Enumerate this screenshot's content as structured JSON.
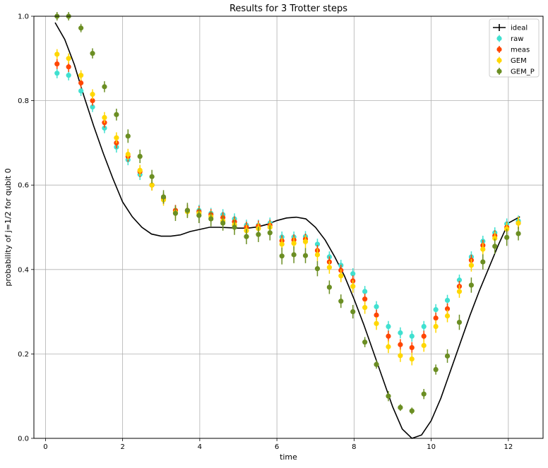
{
  "chart_data": {
    "type": "scatter",
    "title": "Results for 3 Trotter steps",
    "xlabel": "time",
    "ylabel": "probability of j=1/2 for qubit 0",
    "xlim": [
      -0.3,
      12.9
    ],
    "ylim": [
      0.0,
      1.0
    ],
    "xticks": [
      0,
      2,
      4,
      6,
      8,
      10,
      12
    ],
    "yticks": [
      0.0,
      0.2,
      0.4,
      0.6,
      0.8,
      1.0
    ],
    "grid": true,
    "legend_position": "top-right",
    "colors": {
      "ideal": "#000000",
      "raw": "#40e0d0",
      "meas": "#ff4500",
      "GEM": "#ffd700",
      "GEM_P": "#6b8e23"
    },
    "ideal": {
      "name": "ideal",
      "x": [
        0.25,
        0.5,
        0.75,
        1.0,
        1.25,
        1.5,
        1.75,
        2.0,
        2.25,
        2.5,
        2.75,
        3.0,
        3.25,
        3.5,
        3.75,
        4.0,
        4.25,
        4.5,
        4.75,
        5.0,
        5.25,
        5.5,
        5.75,
        6.0,
        6.25,
        6.5,
        6.75,
        7.0,
        7.25,
        7.5,
        7.75,
        8.0,
        8.25,
        8.5,
        8.75,
        9.0,
        9.25,
        9.5,
        9.75,
        10.0,
        10.25,
        10.5,
        10.75,
        11.0,
        11.25,
        11.5,
        11.75,
        12.0,
        12.3
      ],
      "y": [
        0.985,
        0.945,
        0.885,
        0.81,
        0.74,
        0.675,
        0.615,
        0.56,
        0.525,
        0.5,
        0.484,
        0.479,
        0.479,
        0.482,
        0.49,
        0.495,
        0.5,
        0.5,
        0.499,
        0.498,
        0.498,
        0.501,
        0.507,
        0.516,
        0.522,
        0.524,
        0.52,
        0.5,
        0.47,
        0.43,
        0.385,
        0.33,
        0.27,
        0.205,
        0.14,
        0.075,
        0.022,
        0.0,
        0.008,
        0.042,
        0.095,
        0.16,
        0.225,
        0.29,
        0.35,
        0.405,
        0.46,
        0.51,
        0.525
      ]
    },
    "series": [
      {
        "name": "raw",
        "x": [
          0.3,
          0.6,
          0.92,
          1.22,
          1.53,
          1.84,
          2.14,
          2.45,
          2.76,
          3.06,
          3.37,
          3.68,
          3.98,
          4.29,
          4.6,
          4.9,
          5.21,
          5.52,
          5.82,
          6.13,
          6.44,
          6.74,
          7.05,
          7.36,
          7.66,
          7.97,
          8.28,
          8.58,
          8.89,
          9.2,
          9.5,
          9.81,
          10.12,
          10.42,
          10.73,
          11.04,
          11.34,
          11.65,
          11.96,
          12.26
        ],
        "y": [
          0.865,
          0.86,
          0.823,
          0.785,
          0.735,
          0.69,
          0.66,
          0.625,
          0.6,
          0.57,
          0.54,
          0.54,
          0.54,
          0.533,
          0.53,
          0.52,
          0.505,
          0.505,
          0.51,
          0.477,
          0.477,
          0.478,
          0.46,
          0.43,
          0.41,
          0.39,
          0.348,
          0.312,
          0.265,
          0.25,
          0.242,
          0.265,
          0.305,
          0.327,
          0.375,
          0.43,
          0.467,
          0.487,
          0.508,
          0.515
        ],
        "err": [
          0.012,
          0.012,
          0.012,
          0.012,
          0.012,
          0.013,
          0.013,
          0.013,
          0.013,
          0.013,
          0.013,
          0.013,
          0.013,
          0.013,
          0.013,
          0.013,
          0.013,
          0.013,
          0.013,
          0.013,
          0.013,
          0.013,
          0.013,
          0.013,
          0.013,
          0.013,
          0.013,
          0.013,
          0.013,
          0.013,
          0.013,
          0.013,
          0.013,
          0.013,
          0.013,
          0.013,
          0.013,
          0.013,
          0.013,
          0.013
        ]
      },
      {
        "name": "meas",
        "x": [
          0.3,
          0.6,
          0.92,
          1.22,
          1.53,
          1.84,
          2.14,
          2.45,
          2.76,
          3.06,
          3.37,
          3.68,
          3.98,
          4.29,
          4.6,
          4.9,
          5.21,
          5.52,
          5.82,
          6.13,
          6.44,
          6.74,
          7.05,
          7.36,
          7.66,
          7.97,
          8.28,
          8.58,
          8.89,
          9.2,
          9.5,
          9.81,
          10.12,
          10.42,
          10.73,
          11.04,
          11.34,
          11.65,
          11.96,
          12.26
        ],
        "y": [
          0.887,
          0.88,
          0.842,
          0.8,
          0.748,
          0.7,
          0.668,
          0.632,
          0.6,
          0.568,
          0.54,
          0.54,
          0.537,
          0.53,
          0.523,
          0.513,
          0.5,
          0.503,
          0.505,
          0.468,
          0.47,
          0.472,
          0.445,
          0.418,
          0.398,
          0.373,
          0.33,
          0.292,
          0.242,
          0.222,
          0.215,
          0.242,
          0.285,
          0.307,
          0.36,
          0.422,
          0.457,
          0.48,
          0.5,
          0.51
        ],
        "err": [
          0.012,
          0.012,
          0.012,
          0.012,
          0.012,
          0.013,
          0.013,
          0.013,
          0.013,
          0.013,
          0.013,
          0.013,
          0.013,
          0.013,
          0.013,
          0.013,
          0.013,
          0.013,
          0.013,
          0.013,
          0.013,
          0.013,
          0.013,
          0.013,
          0.013,
          0.013,
          0.013,
          0.013,
          0.013,
          0.013,
          0.013,
          0.013,
          0.013,
          0.013,
          0.013,
          0.013,
          0.013,
          0.013,
          0.013,
          0.013
        ]
      },
      {
        "name": "GEM",
        "x": [
          0.3,
          0.6,
          0.92,
          1.22,
          1.53,
          1.84,
          2.14,
          2.45,
          2.76,
          3.06,
          3.37,
          3.68,
          3.98,
          4.29,
          4.6,
          4.9,
          5.21,
          5.52,
          5.82,
          6.13,
          6.44,
          6.74,
          7.05,
          7.36,
          7.66,
          7.97,
          8.28,
          8.58,
          8.89,
          9.2,
          9.5,
          9.81,
          10.12,
          10.42,
          10.73,
          11.04,
          11.34,
          11.65,
          11.96,
          12.26
        ],
        "y": [
          0.91,
          0.9,
          0.86,
          0.815,
          0.76,
          0.712,
          0.673,
          0.635,
          0.6,
          0.565,
          0.535,
          0.537,
          0.533,
          0.525,
          0.515,
          0.506,
          0.492,
          0.497,
          0.5,
          0.46,
          0.462,
          0.466,
          0.435,
          0.405,
          0.385,
          0.36,
          0.31,
          0.272,
          0.217,
          0.196,
          0.188,
          0.22,
          0.265,
          0.29,
          0.348,
          0.41,
          0.448,
          0.474,
          0.496,
          0.51
        ],
        "err": [
          0.012,
          0.012,
          0.012,
          0.012,
          0.013,
          0.013,
          0.013,
          0.013,
          0.013,
          0.014,
          0.014,
          0.014,
          0.014,
          0.014,
          0.014,
          0.014,
          0.014,
          0.014,
          0.014,
          0.015,
          0.015,
          0.015,
          0.015,
          0.015,
          0.015,
          0.015,
          0.015,
          0.015,
          0.015,
          0.015,
          0.015,
          0.015,
          0.015,
          0.015,
          0.015,
          0.015,
          0.015,
          0.015,
          0.015,
          0.015
        ]
      },
      {
        "name": "GEM_P",
        "x": [
          0.3,
          0.6,
          0.92,
          1.22,
          1.53,
          1.84,
          2.14,
          2.45,
          2.76,
          3.06,
          3.37,
          3.68,
          3.98,
          4.29,
          4.6,
          4.9,
          5.21,
          5.52,
          5.82,
          6.13,
          6.44,
          6.74,
          7.05,
          7.36,
          7.66,
          7.97,
          8.28,
          8.58,
          8.89,
          9.2,
          9.5,
          9.81,
          10.12,
          10.42,
          10.73,
          11.04,
          11.34,
          11.65,
          11.96,
          12.26
        ],
        "y": [
          1.0,
          1.0,
          0.972,
          0.912,
          0.833,
          0.767,
          0.716,
          0.668,
          0.62,
          0.572,
          0.533,
          0.54,
          0.528,
          0.52,
          0.51,
          0.5,
          0.478,
          0.483,
          0.487,
          0.432,
          0.435,
          0.433,
          0.402,
          0.358,
          0.325,
          0.3,
          0.228,
          0.175,
          0.1,
          0.073,
          0.065,
          0.105,
          0.163,
          0.195,
          0.275,
          0.363,
          0.418,
          0.455,
          0.476,
          0.485
        ],
        "err": [
          0.01,
          0.01,
          0.01,
          0.012,
          0.013,
          0.014,
          0.016,
          0.016,
          0.016,
          0.016,
          0.018,
          0.018,
          0.018,
          0.018,
          0.018,
          0.018,
          0.018,
          0.018,
          0.018,
          0.02,
          0.02,
          0.018,
          0.018,
          0.016,
          0.016,
          0.016,
          0.012,
          0.01,
          0.012,
          0.008,
          0.008,
          0.012,
          0.012,
          0.016,
          0.018,
          0.018,
          0.018,
          0.018,
          0.02,
          0.016
        ]
      }
    ],
    "legend": [
      "ideal",
      "raw",
      "meas",
      "GEM",
      "GEM_P"
    ]
  }
}
